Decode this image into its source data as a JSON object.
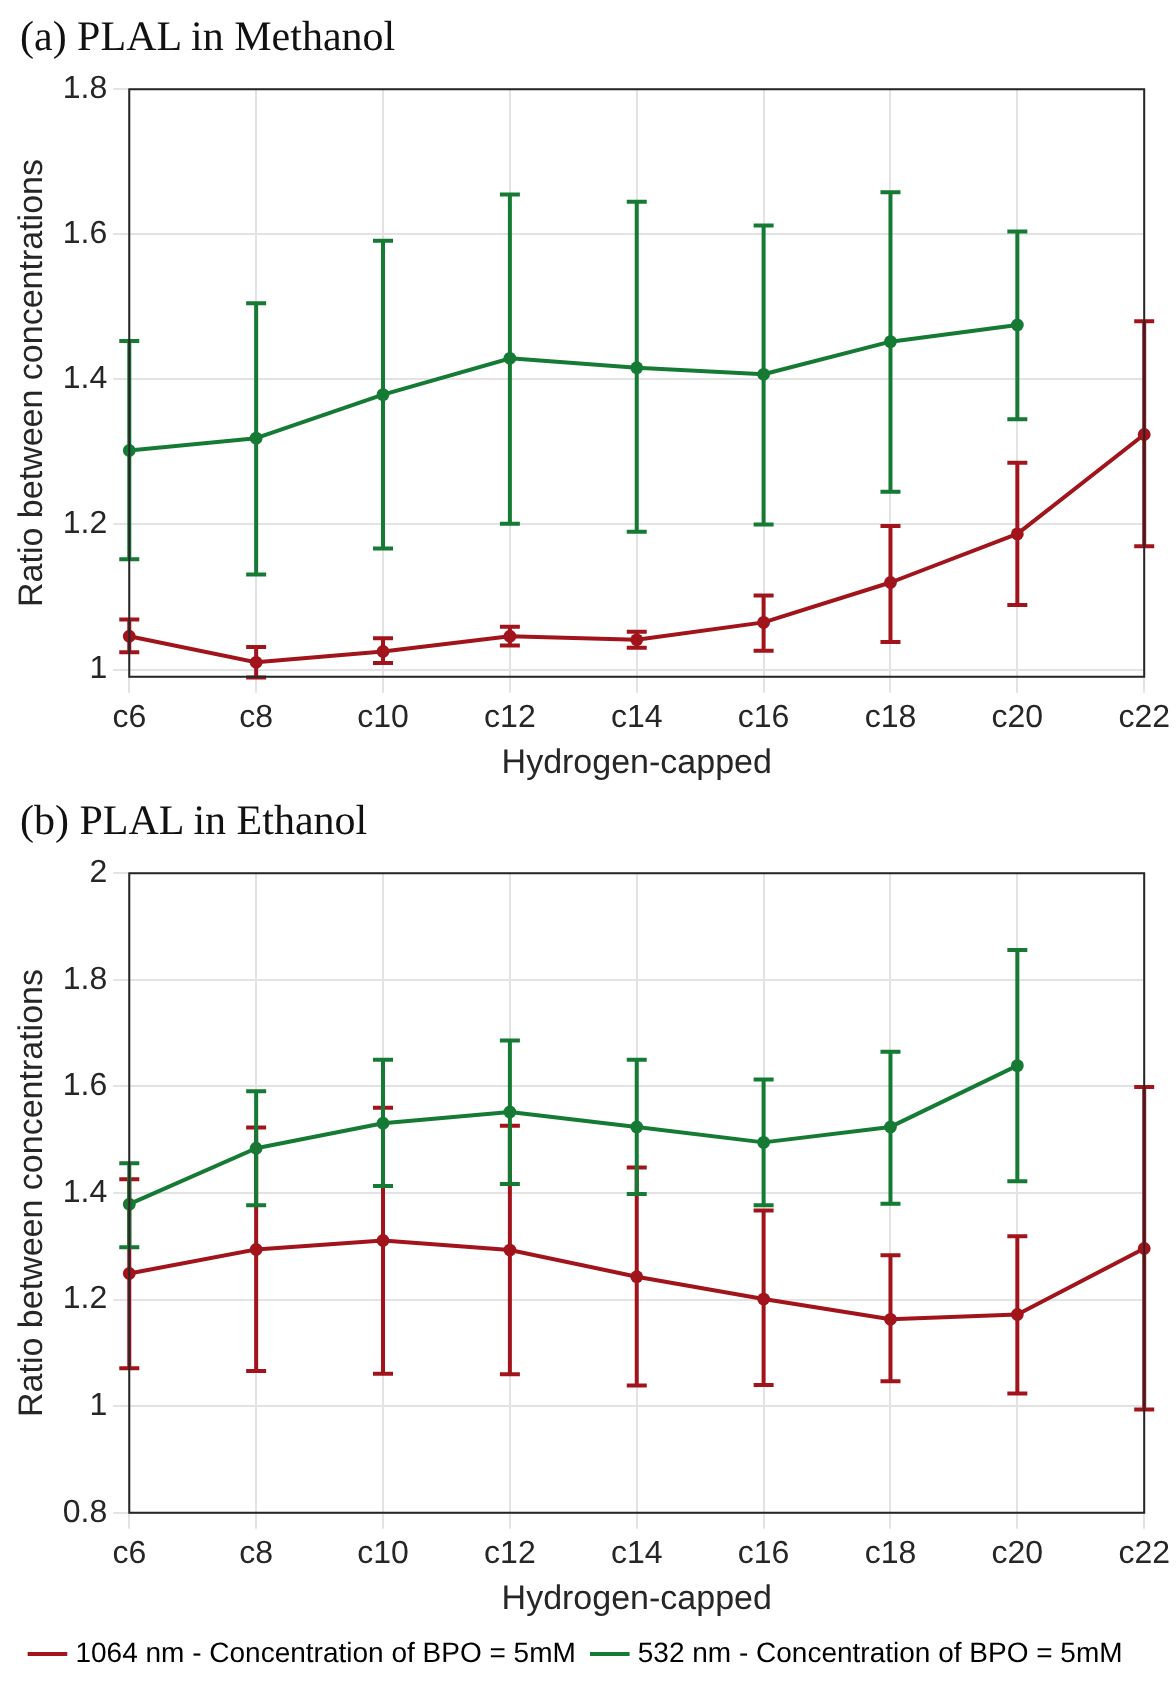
{
  "chart_data": [
    {
      "type": "line",
      "title": "(a) PLAL in Methanol",
      "xlabel": "Hydrogen-capped",
      "ylabel": "Ratio between concentrations",
      "categories": [
        "c6",
        "c8",
        "c10",
        "c12",
        "c14",
        "c16",
        "c18",
        "c20",
        "c22"
      ],
      "series": [
        {
          "color": "#a2141c",
          "values": [
            1.046,
            1.01,
            1.025,
            1.046,
            1.041,
            1.065,
            1.12,
            1.187,
            1.324
          ],
          "errors": [
            [
              1.024,
              1.069
            ],
            [
              0.989,
              1.031
            ],
            [
              1.009,
              1.043
            ],
            [
              1.033,
              1.059
            ],
            [
              1.03,
              1.052
            ],
            [
              1.026,
              1.102
            ],
            [
              1.038,
              1.198
            ],
            [
              1.089,
              1.285
            ],
            [
              1.17,
              1.48
            ]
          ]
        },
        {
          "color": "#157a34",
          "values": [
            1.302,
            1.319,
            1.379,
            1.429,
            1.416,
            1.407,
            1.452,
            1.475,
            null
          ],
          "errors": [
            [
              1.152,
              1.453
            ],
            [
              1.131,
              1.505
            ],
            [
              1.167,
              1.591
            ],
            [
              1.201,
              1.655
            ],
            [
              1.19,
              1.645
            ],
            [
              1.2,
              1.612
            ],
            [
              1.245,
              1.658
            ],
            [
              1.345,
              1.604
            ],
            null
          ]
        }
      ],
      "ylim": [
        0.99,
        1.8
      ],
      "yticks": [
        1,
        1.2,
        1.4,
        1.6,
        1.8
      ],
      "grid": true,
      "legend": false,
      "marker": "circle",
      "line_style": "solid"
    },
    {
      "type": "line",
      "title": "(b) PLAL in Ethanol",
      "xlabel": "Hydrogen-capped",
      "ylabel": "Ratio between concentrations",
      "categories": [
        "c6",
        "c8",
        "c10",
        "c12",
        "c14",
        "c16",
        "c18",
        "c20",
        "c22"
      ],
      "series": [
        {
          "name": "1064 nm - Concentration of BPO = 5mM",
          "color": "#a2141c",
          "values": [
            1.249,
            1.294,
            1.311,
            1.293,
            1.243,
            1.201,
            1.163,
            1.172,
            1.296
          ],
          "errors": [
            [
              1.071,
              1.426
            ],
            [
              1.066,
              1.523
            ],
            [
              1.061,
              1.56
            ],
            [
              1.06,
              1.526
            ],
            [
              1.039,
              1.448
            ],
            [
              1.04,
              1.367
            ],
            [
              1.047,
              1.283
            ],
            [
              1.024,
              1.319
            ],
            [
              0.994,
              1.599
            ]
          ]
        },
        {
          "name": "532 nm - Concentration of BPO = 5mM",
          "color": "#157a34",
          "values": [
            1.379,
            1.484,
            1.531,
            1.552,
            1.524,
            1.495,
            1.524,
            1.639,
            null
          ],
          "errors": [
            [
              1.298,
              1.456
            ],
            [
              1.377,
              1.591
            ],
            [
              1.413,
              1.65
            ],
            [
              1.417,
              1.686
            ],
            [
              1.398,
              1.65
            ],
            [
              1.377,
              1.613
            ],
            [
              1.38,
              1.665
            ],
            [
              1.422,
              1.856
            ],
            null
          ]
        }
      ],
      "ylim": [
        0.8,
        2
      ],
      "yticks": [
        0.8,
        1,
        1.2,
        1.4,
        1.6,
        1.8,
        2
      ],
      "grid": true,
      "legend": "bottom",
      "marker": "circle",
      "line_style": "solid"
    }
  ]
}
